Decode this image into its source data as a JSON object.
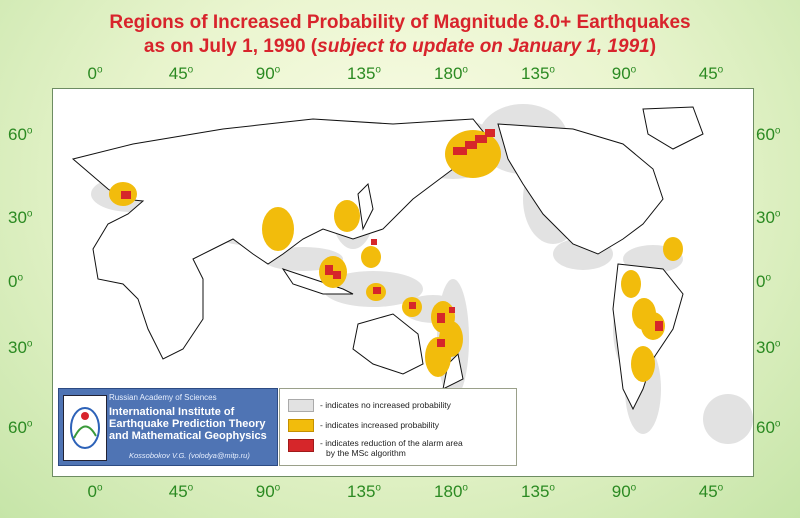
{
  "title": {
    "line1": "Regions of Increased Probability of Magnitude 8.0+ Earthquakes",
    "line2_main": "as on July 1, 1990 (",
    "line2_italic": "subject to update on January 1, 1991",
    "line2_end": ")"
  },
  "axes": {
    "lon_labels_top": [
      "0",
      "45",
      "90",
      "135",
      "180",
      "135",
      "90",
      "45"
    ],
    "lon_labels_bottom": [
      "0",
      "45",
      "90",
      "135",
      "180",
      "135",
      "90",
      "45"
    ],
    "lat_labels_left": [
      "60",
      "30",
      "0",
      "30",
      "60"
    ],
    "lat_labels_right": [
      "60",
      "30",
      "0",
      "30",
      "60"
    ],
    "degree_mark": "o"
  },
  "colors": {
    "title": "#d8242c",
    "axis_labels": "#2b8a22",
    "no_increase": "#e2e2e2",
    "increased": "#f2bc0c",
    "reduced": "#d6262a",
    "coastline": "#111111",
    "panel": "#4f74b4"
  },
  "institute": {
    "academy": "Russian Academy of Sciences",
    "name_line1": "International Institute of",
    "name_line2": "Earthquake Prediction Theory",
    "name_line3": "and Mathematical Geophysics",
    "author": "Kossobokov V.G. (volodya@mitp.ru)"
  },
  "legend": {
    "items": [
      {
        "label": "- indicates no increased probability",
        "color": "#e2e2e2"
      },
      {
        "label": "- indicates increased probability",
        "color": "#f2bc0c"
      },
      {
        "label": "- indicates reduction of the alarm area",
        "label2": "by the MSc algorithm",
        "color": "#d6262a"
      }
    ]
  }
}
